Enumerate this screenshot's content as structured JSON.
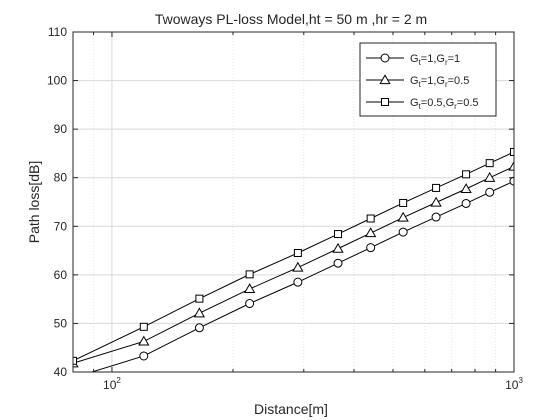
{
  "chart_data": {
    "type": "line",
    "title": "Twoways PL-loss Model,ht = 50 m ,hr = 2 m",
    "xlabel": "Distance[m]",
    "ylabel": "Path loss[dB]",
    "xscale": "log",
    "xlim": [
      80,
      1000
    ],
    "ylim": [
      40,
      110
    ],
    "yticks": [
      40,
      50,
      60,
      70,
      80,
      90,
      100,
      110
    ],
    "xticks": [
      {
        "value": 100,
        "base": "10",
        "exp": "2"
      },
      {
        "value": 1000,
        "base": "10",
        "exp": "3"
      }
    ],
    "grid": true,
    "legend_position": "top-right",
    "x": [
      80,
      120,
      165,
      220,
      290,
      365,
      440,
      530,
      640,
      760,
      870,
      1000
    ],
    "series": [
      {
        "name": "Gt=1,Gr=1",
        "legend": {
          "p1": "G",
          "s1": "t",
          "p2": "=1,G",
          "s2": "r",
          "p3": "=1"
        },
        "marker": "circle",
        "values": [
          38.8,
          43.3,
          49.1,
          54.1,
          58.5,
          62.4,
          65.6,
          68.8,
          71.9,
          74.7,
          77.0,
          79.3
        ]
      },
      {
        "name": "Gt=1,Gr=0.5",
        "legend": {
          "p1": "G",
          "s1": "t",
          "p2": "=1,G",
          "s2": "r",
          "p3": "=0.5"
        },
        "marker": "triangle",
        "values": [
          41.8,
          46.3,
          52.1,
          57.1,
          61.5,
          65.4,
          68.6,
          71.8,
          74.9,
          77.7,
          80.0,
          82.3
        ]
      },
      {
        "name": "Gt=0.5,Gr=0.5",
        "legend": {
          "p1": "G",
          "s1": "t",
          "p2": "=0.5,G",
          "s2": "r",
          "p3": "=0.5"
        },
        "marker": "square",
        "values": [
          42.3,
          49.3,
          55.1,
          60.1,
          64.5,
          68.4,
          71.6,
          74.8,
          77.9,
          80.7,
          83.0,
          85.3
        ]
      }
    ]
  }
}
